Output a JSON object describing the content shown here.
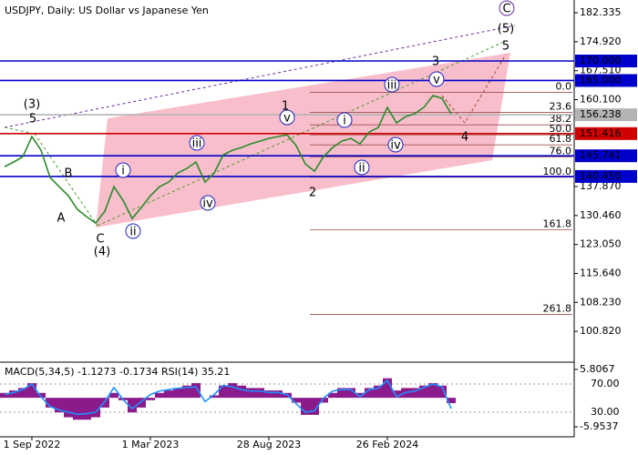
{
  "chart_data": [
    {
      "type": "line",
      "title": "USDJPY, Daily:  US Dollar vs Japanese Yen",
      "categories": [
        null,
        null,
        null,
        "1 Sep 2022",
        null,
        null,
        null,
        null,
        null,
        null,
        null,
        null,
        null,
        null,
        null,
        null,
        "1 Mar 2023",
        null,
        null,
        null,
        null,
        null,
        null,
        null,
        null,
        null,
        null,
        null,
        null,
        "28 Aug 2023",
        null,
        null,
        null,
        null,
        null,
        null,
        null,
        null,
        null,
        null,
        null,
        null,
        "26 Feb 2024",
        null,
        null,
        null,
        null,
        null,
        null,
        null
      ],
      "values": [
        142.96,
        144.13,
        145.52,
        150.65,
        147.16,
        140.17,
        137.84,
        135.51,
        132.01,
        130.15,
        128.52,
        131.54,
        137.84,
        134.34,
        129.68,
        132.48,
        135.51,
        137.84,
        139.0,
        141.33,
        142.5,
        144.13,
        139.0,
        141.33,
        145.99,
        147.16,
        147.85,
        148.79,
        149.49,
        150.18,
        150.65,
        151.12,
        148.32,
        143.66,
        141.8,
        145.52,
        147.85,
        149.49,
        150.18,
        148.79,
        151.82,
        152.98,
        158.11,
        154.15,
        155.78,
        156.48,
        158.11,
        161.14,
        160.44,
        156.48
      ],
      "color": "#2a8a2a",
      "ylim": [
        93.4,
        185.6
      ],
      "yticks": [
        182.335,
        {
          "value": 174.92,
          "label": "174.920"
        },
        {
          "value": 167.51,
          "label": "167.510"
        },
        {
          "value": 160.1,
          "label": "160.100"
        },
        {
          "value": 137.87,
          "label": "137.870"
        },
        {
          "value": 130.46,
          "label": "130.460"
        },
        {
          "value": 123.05,
          "label": "123.050"
        },
        {
          "value": 115.64,
          "label": "115.640"
        },
        {
          "value": 108.23,
          "label": "108.230"
        },
        {
          "value": 100.82,
          "label": "100.820"
        }
      ],
      "levels": [
        {
          "value": 170,
          "label": "170.000",
          "color": "#0000cc"
        },
        {
          "value": 165,
          "label": "165.000",
          "color": "#0000cc"
        },
        {
          "value": 156.238,
          "label": "156.238",
          "color": "#b4b4b4"
        },
        {
          "value": 151.416,
          "label": "151.416",
          "color": "#d10000"
        },
        {
          "value": 145.741,
          "label": "145.741",
          "color": "#0000cc"
        },
        {
          "value": 140.45,
          "label": "140.450",
          "color": "#0000cc"
        }
      ],
      "fib_labels": [
        "0.0",
        "23.6",
        "38.2",
        "50.0",
        "61.8",
        "76.0",
        "100.0",
        "161.8",
        "261.8"
      ],
      "fib_prices": [
        161.95,
        156.83,
        153.66,
        151.1,
        148.54,
        145.46,
        140.25,
        126.84,
        105.14
      ],
      "annotations": [
        {
          "text": "(3)",
          "color": "#4a9a2a",
          "circled": false
        },
        {
          "text": "5",
          "color": "#a0422a",
          "circled": false
        },
        {
          "text": "B",
          "color": "#a0422a",
          "circled": false
        },
        {
          "text": "A",
          "color": "#a0422a",
          "circled": false
        },
        {
          "text": "C",
          "color": "#a0422a",
          "circled": false
        },
        {
          "text": "(4)",
          "color": "#4a9a2a",
          "circled": false
        },
        {
          "text": "i",
          "color": "#2020c0",
          "circled": true
        },
        {
          "text": "ii",
          "color": "#2020c0",
          "circled": true
        },
        {
          "text": "iii",
          "color": "#2020c0",
          "circled": true
        },
        {
          "text": "iv",
          "color": "#2020c0",
          "circled": true
        },
        {
          "text": "v",
          "color": "#2020c0",
          "circled": true
        },
        {
          "text": "1",
          "color": "#a0422a",
          "circled": false
        },
        {
          "text": "2",
          "color": "#a0422a",
          "circled": false
        },
        {
          "text": "i",
          "color": "#2020c0",
          "circled": true
        },
        {
          "text": "ii",
          "color": "#2020c0",
          "circled": true
        },
        {
          "text": "iii",
          "color": "#2020c0",
          "circled": true
        },
        {
          "text": "iv",
          "color": "#2020c0",
          "circled": true
        },
        {
          "text": "v",
          "color": "#2020c0",
          "circled": true
        },
        {
          "text": "3",
          "color": "#a0422a",
          "circled": false
        },
        {
          "text": "4",
          "color": "#a0422a",
          "circled": false
        },
        {
          "text": "5",
          "color": "#a0422a",
          "circled": false
        },
        {
          "text": "(5)",
          "color": "#4a9a2a",
          "circled": false
        },
        {
          "text": "C",
          "color": "#6a2aa0",
          "circled": true
        }
      ]
    },
    {
      "type": "bar",
      "title": "MACD(5,34,5) -1.1273 -0.1734 RSI(14) 35.21",
      "ylim": [
        -7.63,
        6.93
      ],
      "yticks": [
        5.8067,
        -5.9537
      ],
      "y2lim": [
        -2.3,
        98.4
      ],
      "y2ticks": [
        {
          "value": 70,
          "label": "70.00"
        },
        {
          "value": 30,
          "label": "30.00"
        }
      ],
      "series": [
        {
          "color": "#8b1a8b",
          "values": [
            1,
            1.5,
            2,
            3,
            1,
            -2,
            -3,
            -4,
            -4.5,
            -4.5,
            -4,
            -2,
            1,
            -0.5,
            -3,
            -2,
            -0.5,
            1,
            1.5,
            2,
            2.5,
            3,
            0,
            0.5,
            2.5,
            3,
            2.5,
            2,
            2,
            1.5,
            1.5,
            1,
            -1,
            -3.5,
            -3.5,
            -1,
            1,
            2,
            2,
            1,
            2,
            2.5,
            4,
            1.5,
            2,
            2,
            2.5,
            3,
            2.5,
            -1.1
          ]
        },
        {
          "color": "#1e90ff",
          "axis": "y2",
          "values": [
            55,
            58,
            62,
            70,
            52,
            38,
            33,
            30,
            27,
            28,
            30,
            45,
            65,
            48,
            35,
            45,
            55,
            60,
            62,
            64,
            65,
            66,
            45,
            55,
            68,
            66,
            62,
            60,
            60,
            58,
            58,
            55,
            42,
            30,
            32,
            50,
            60,
            62,
            62,
            52,
            62,
            64,
            75,
            52,
            58,
            60,
            65,
            70,
            66,
            35
          ]
        }
      ]
    }
  ]
}
